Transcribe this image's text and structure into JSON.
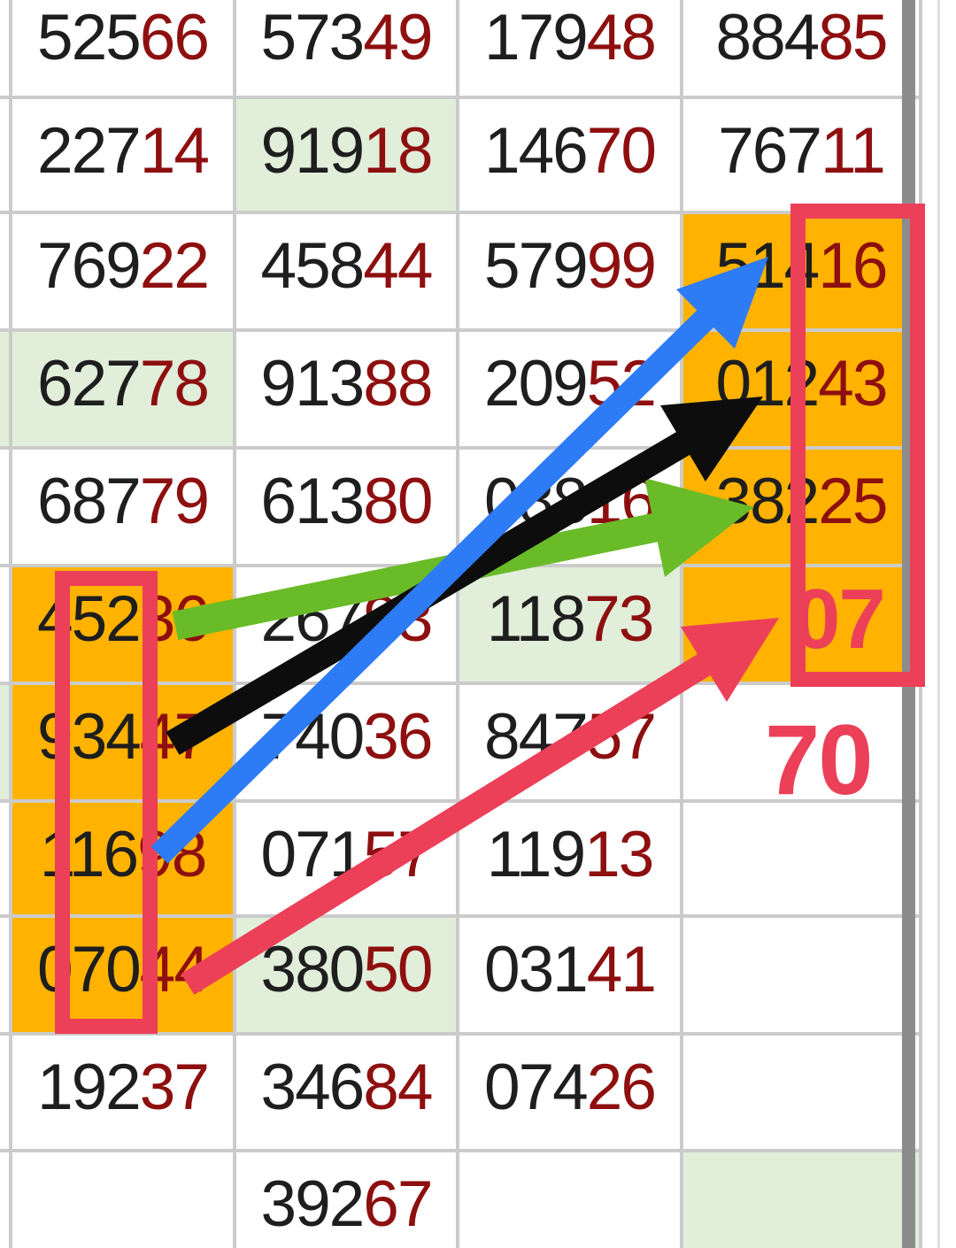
{
  "page": {
    "description": "lottery number grid with prediction arrows"
  },
  "grid": {
    "cell_bg_colors": {
      "white": "#ffffff",
      "orange": "#ffb300",
      "green": "#e0eeda"
    },
    "digit_colors": {
      "first_three": "#1e1e1e",
      "last_two": "#8e0f0f"
    },
    "grid_line_color": "#cbcbcb",
    "rows": [
      {
        "sliver": "white",
        "cells": [
          {
            "v": "52566",
            "bg": "white"
          },
          {
            "v": "57349",
            "bg": "white"
          },
          {
            "v": "17948",
            "bg": "white"
          },
          {
            "v": "88485",
            "bg": "white"
          }
        ]
      },
      {
        "sliver": "white",
        "cells": [
          {
            "v": "22714",
            "bg": "white"
          },
          {
            "v": "91918",
            "bg": "green"
          },
          {
            "v": "14670",
            "bg": "white"
          },
          {
            "v": "76711",
            "bg": "white"
          }
        ]
      },
      {
        "sliver": "white",
        "cells": [
          {
            "v": "76922",
            "bg": "white"
          },
          {
            "v": "45844",
            "bg": "white"
          },
          {
            "v": "57999",
            "bg": "white"
          },
          {
            "v": "51416",
            "bg": "orange"
          }
        ]
      },
      {
        "sliver": "green",
        "cells": [
          {
            "v": "62778",
            "bg": "green"
          },
          {
            "v": "91388",
            "bg": "white"
          },
          {
            "v": "20952",
            "bg": "white"
          },
          {
            "v": "01243",
            "bg": "orange"
          }
        ]
      },
      {
        "sliver": "white",
        "cells": [
          {
            "v": "68779",
            "bg": "white"
          },
          {
            "v": "61380",
            "bg": "white"
          },
          {
            "v": "08816",
            "bg": "white"
          },
          {
            "v": "38225",
            "bg": "orange"
          }
        ]
      },
      {
        "sliver": "white",
        "cells": [
          {
            "v": "45236",
            "bg": "orange"
          },
          {
            "v": "26793",
            "bg": "white"
          },
          {
            "v": "11873",
            "bg": "green"
          },
          {
            "v": "",
            "bg": "orange"
          }
        ]
      },
      {
        "sliver": "green",
        "cells": [
          {
            "v": "93447",
            "bg": "orange"
          },
          {
            "v": "74036",
            "bg": "white"
          },
          {
            "v": "84757",
            "bg": "white"
          },
          {
            "v": "",
            "bg": "white"
          }
        ]
      },
      {
        "sliver": "white",
        "cells": [
          {
            "v": "11698",
            "bg": "orange"
          },
          {
            "v": "07157",
            "bg": "white"
          },
          {
            "v": "11913",
            "bg": "white"
          },
          {
            "v": "",
            "bg": "white"
          }
        ]
      },
      {
        "sliver": "white",
        "cells": [
          {
            "v": "07044",
            "bg": "orange"
          },
          {
            "v": "38050",
            "bg": "green"
          },
          {
            "v": "03141",
            "bg": "white"
          },
          {
            "v": "",
            "bg": "white"
          }
        ]
      },
      {
        "sliver": "white",
        "cells": [
          {
            "v": "19237",
            "bg": "white"
          },
          {
            "v": "34684",
            "bg": "white"
          },
          {
            "v": "07426",
            "bg": "white"
          },
          {
            "v": "",
            "bg": "white"
          }
        ]
      },
      {
        "sliver": "white",
        "cells": [
          {
            "v": "",
            "bg": "white"
          },
          {
            "v": "39267",
            "bg": "white"
          },
          {
            "v": "",
            "bg": "white"
          },
          {
            "v": "",
            "bg": "green"
          }
        ]
      }
    ]
  },
  "annotations": {
    "pair_07": "07",
    "pair_70": "70",
    "highlight_color": "#ec3f58",
    "arrow_colors": {
      "blue": "#2e7bf6",
      "black": "#0d0d0d",
      "green": "#69bb28",
      "red": "#ec3f58"
    }
  },
  "scrollbar_color": "#8c8c8c"
}
